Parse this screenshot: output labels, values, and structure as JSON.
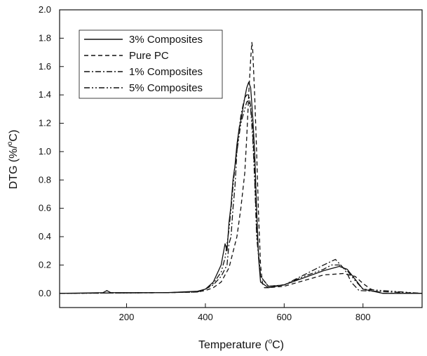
{
  "chart_data": {
    "type": "line",
    "xlabel": "Temperature (°C)",
    "xlabel_main": "Temperature (",
    "xlabel_sup": "o",
    "xlabel_end": "C)",
    "ylabel": "DTG (%/°C)",
    "ylabel_main": "DTG (%/",
    "ylabel_sup": "o",
    "ylabel_end": "C)",
    "xlim": [
      30,
      950
    ],
    "ylim": [
      -0.1,
      2.0
    ],
    "xticks": [
      200,
      400,
      600,
      800
    ],
    "yticks": [
      0.0,
      0.2,
      0.4,
      0.6,
      0.8,
      1.0,
      1.2,
      1.4,
      1.6,
      1.8,
      2.0
    ],
    "xtick_labels": [
      "200",
      "400",
      "600",
      "800"
    ],
    "ytick_labels": [
      "0.0",
      "0.2",
      "0.4",
      "0.6",
      "0.8",
      "1.0",
      "1.2",
      "1.4",
      "1.6",
      "1.8",
      "2.0"
    ],
    "grid": false,
    "legend_position": "top-left",
    "series": [
      {
        "name": "3% Composites",
        "dash": "solid",
        "x": [
          30,
          140,
          150,
          160,
          300,
          380,
          400,
          420,
          440,
          450,
          455,
          460,
          465,
          470,
          475,
          480,
          485,
          490,
          495,
          500,
          505,
          510,
          515,
          520,
          525,
          530,
          535,
          540,
          560,
          600,
          650,
          700,
          740,
          760,
          780,
          800,
          850,
          950
        ],
        "y": [
          0.0,
          0.005,
          0.02,
          0.005,
          0.005,
          0.015,
          0.03,
          0.08,
          0.2,
          0.35,
          0.3,
          0.5,
          0.62,
          0.8,
          0.9,
          1.05,
          1.15,
          1.22,
          1.3,
          1.38,
          1.45,
          1.49,
          1.45,
          1.25,
          1.0,
          0.6,
          0.25,
          0.08,
          0.04,
          0.06,
          0.11,
          0.16,
          0.19,
          0.17,
          0.1,
          0.03,
          0.0,
          0.0
        ]
      },
      {
        "name": "Pure PC",
        "dash": "dashed",
        "x": [
          30,
          300,
          380,
          400,
          420,
          440,
          460,
          480,
          490,
          500,
          505,
          510,
          515,
          518,
          520,
          525,
          530,
          535,
          540,
          545,
          550,
          560,
          600,
          650,
          700,
          750,
          780,
          800,
          820,
          850,
          950
        ],
        "y": [
          0.0,
          0.005,
          0.01,
          0.02,
          0.04,
          0.08,
          0.18,
          0.4,
          0.6,
          0.85,
          1.1,
          1.4,
          1.65,
          1.77,
          1.72,
          1.4,
          1.0,
          0.55,
          0.2,
          0.07,
          0.04,
          0.04,
          0.05,
          0.09,
          0.13,
          0.14,
          0.12,
          0.07,
          0.03,
          0.0,
          0.0
        ]
      },
      {
        "name": "1% Composites",
        "dash": "dashdot",
        "x": [
          30,
          300,
          380,
          400,
          420,
          440,
          455,
          460,
          465,
          470,
          475,
          480,
          485,
          490,
          495,
          500,
          505,
          510,
          515,
          520,
          525,
          530,
          540,
          560,
          600,
          650,
          700,
          730,
          740,
          750,
          760,
          770,
          790,
          950
        ],
        "y": [
          0.0,
          0.005,
          0.01,
          0.03,
          0.06,
          0.12,
          0.2,
          0.35,
          0.4,
          0.6,
          0.75,
          1.0,
          1.15,
          1.25,
          1.32,
          1.38,
          1.4,
          1.4,
          1.32,
          1.15,
          0.85,
          0.45,
          0.12,
          0.05,
          0.06,
          0.13,
          0.2,
          0.24,
          0.21,
          0.18,
          0.14,
          0.08,
          0.02,
          0.0
        ]
      },
      {
        "name": "5% Composites",
        "dash": "dashdotdot",
        "x": [
          30,
          300,
          380,
          400,
          420,
          440,
          450,
          460,
          465,
          470,
          475,
          480,
          485,
          490,
          495,
          500,
          505,
          510,
          515,
          520,
          525,
          530,
          540,
          560,
          600,
          650,
          700,
          720,
          740,
          760,
          780,
          800,
          950
        ],
        "y": [
          0.0,
          0.005,
          0.01,
          0.03,
          0.07,
          0.15,
          0.25,
          0.45,
          0.6,
          0.75,
          0.9,
          1.0,
          1.1,
          1.2,
          1.25,
          1.3,
          1.35,
          1.36,
          1.3,
          1.1,
          0.8,
          0.4,
          0.12,
          0.05,
          0.06,
          0.12,
          0.17,
          0.2,
          0.2,
          0.16,
          0.09,
          0.03,
          0.0
        ]
      }
    ]
  },
  "colors": {
    "line": "#111111",
    "background": "#ffffff"
  }
}
